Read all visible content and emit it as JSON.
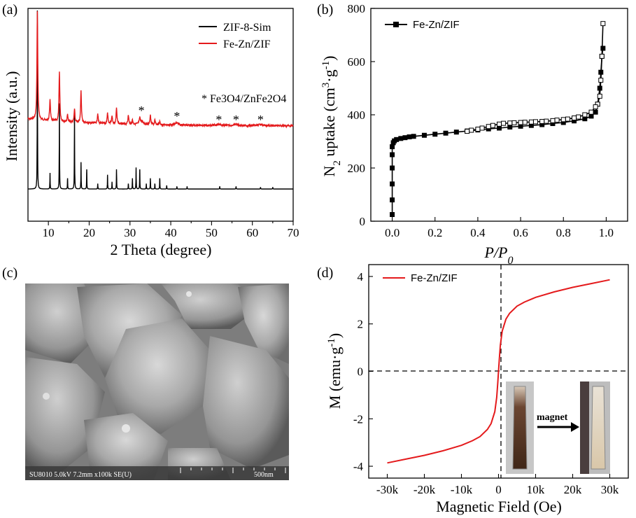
{
  "panels": {
    "a": {
      "label": "(a)",
      "xlabel": "2 Theta (degree)",
      "ylabel": "Intensity (a.u.)",
      "legend": [
        "ZIF-8-Sim",
        "Fe-Zn/ZIF"
      ],
      "annotation": "* Fe3O4/ZnFe2O4",
      "colors": {
        "sim": "#000000",
        "fezn": "#e41a1c"
      }
    },
    "b": {
      "label": "(b)",
      "xlabel": "P/P0",
      "ylabel": "N2 uptake (cm3·g-1)",
      "legend": "Fe-Zn/ZIF"
    },
    "c": {
      "label": "(c)",
      "sem_caption": "SU8010 5.0kV 7.2mm x100k SE(U)",
      "scale_text": "500nm"
    },
    "d": {
      "label": "(d)",
      "xlabel": "Magnetic Field (Oe)",
      "ylabel": "M (emu·g-1)",
      "legend": "Fe-Zn/ZIF",
      "inset_label": "magnet"
    }
  },
  "chart_data": [
    {
      "id": "a",
      "type": "line",
      "title": "",
      "xlabel": "2 Theta (degree)",
      "ylabel": "Intensity (a.u.)",
      "xlim": [
        5,
        70
      ],
      "xticks": [
        10,
        20,
        30,
        40,
        50,
        60,
        70
      ],
      "yticks_shown": false,
      "series": [
        {
          "name": "ZIF-8-Sim",
          "baseline": 0,
          "peaks": [
            [
              7.3,
              100
            ],
            [
              10.4,
              9
            ],
            [
              12.7,
              48
            ],
            [
              14.7,
              6
            ],
            [
              16.4,
              43
            ],
            [
              18.0,
              15
            ],
            [
              19.4,
              11
            ],
            [
              22.1,
              3
            ],
            [
              24.5,
              8
            ],
            [
              25.6,
              4
            ],
            [
              26.7,
              11
            ],
            [
              29.6,
              3
            ],
            [
              30.6,
              6
            ],
            [
              31.5,
              12
            ],
            [
              32.4,
              11
            ],
            [
              34.0,
              3
            ],
            [
              35.0,
              6
            ],
            [
              36.1,
              3
            ],
            [
              37.3,
              6
            ],
            [
              39.0,
              2
            ],
            [
              41.5,
              1.5
            ],
            [
              44.0,
              1.5
            ],
            [
              52.0,
              1.5
            ],
            [
              56.0,
              1.5
            ],
            [
              62.0,
              1
            ],
            [
              65.0,
              1
            ]
          ]
        },
        {
          "name": "Fe-Zn/ZIF",
          "baseline": 37,
          "peaks": [
            [
              7.3,
              100
            ],
            [
              10.4,
              20
            ],
            [
              12.7,
              45
            ],
            [
              14.7,
              7
            ],
            [
              16.4,
              12
            ],
            [
              18.0,
              29
            ],
            [
              22.1,
              9
            ],
            [
              24.5,
              10
            ],
            [
              25.6,
              7
            ],
            [
              26.7,
              15
            ],
            [
              29.6,
              9
            ],
            [
              30.6,
              4
            ],
            [
              32.4,
              5
            ],
            [
              35.0,
              9
            ],
            [
              36.1,
              4
            ],
            [
              37.3,
              3
            ]
          ],
          "marked_positions": [
            32.8,
            41.5,
            51.8,
            56.0,
            62.0
          ]
        }
      ]
    },
    {
      "id": "b",
      "type": "line",
      "xlabel": "P/P0",
      "ylabel": "N2 uptake (cm3·g-1)",
      "xlim": [
        -0.1,
        1.1
      ],
      "ylim": [
        0,
        800
      ],
      "xticks": [
        0.0,
        0.2,
        0.4,
        0.6,
        0.8,
        1.0
      ],
      "yticks": [
        0,
        200,
        400,
        600,
        800
      ],
      "series": [
        {
          "name": "Fe-Zn/ZIF (adsorption)",
          "x": [
            0.0,
            0.0,
            0.0,
            0.0,
            0.0,
            0.0,
            0.005,
            0.01,
            0.02,
            0.04,
            0.06,
            0.08,
            0.1,
            0.15,
            0.2,
            0.25,
            0.3,
            0.35,
            0.4,
            0.45,
            0.5,
            0.55,
            0.6,
            0.65,
            0.7,
            0.75,
            0.8,
            0.85,
            0.9,
            0.93,
            0.95,
            0.96,
            0.97,
            0.975,
            0.98,
            0.985
          ],
          "y": [
            25,
            80,
            140,
            200,
            250,
            280,
            295,
            302,
            307,
            311,
            314,
            317,
            319,
            323,
            327,
            331,
            335,
            339,
            343,
            347,
            350,
            354,
            357,
            360,
            363,
            367,
            371,
            377,
            385,
            395,
            410,
            440,
            500,
            560,
            620,
            650
          ]
        },
        {
          "name": "Fe-Zn/ZIF (desorption)",
          "x": [
            0.985,
            0.98,
            0.975,
            0.97,
            0.96,
            0.95,
            0.93,
            0.9,
            0.87,
            0.85,
            0.82,
            0.8,
            0.77,
            0.75,
            0.72,
            0.7,
            0.67,
            0.65,
            0.62,
            0.6,
            0.57,
            0.55,
            0.52,
            0.5,
            0.47,
            0.45,
            0.42,
            0.4,
            0.37,
            0.35
          ],
          "y": [
            743,
            620,
            530,
            470,
            440,
            430,
            410,
            400,
            392,
            388,
            384,
            382,
            380,
            378,
            376,
            375,
            374,
            373,
            372,
            371,
            370,
            369,
            368,
            365,
            360,
            356,
            350,
            346,
            342,
            338
          ]
        }
      ]
    },
    {
      "id": "d",
      "type": "line",
      "xlabel": "Magnetic Field (Oe)",
      "ylabel": "M (emu·g-1)",
      "xlim": [
        -35000,
        35000
      ],
      "ylim": [
        -4.5,
        4.5
      ],
      "xticks": [
        -30000,
        -20000,
        -10000,
        0,
        10000,
        20000,
        30000
      ],
      "xticklabels": [
        "-30k",
        "-20k",
        "-10k",
        "0",
        "10k",
        "20k",
        "30k"
      ],
      "yticks": [
        -4,
        -2,
        0,
        2,
        4
      ],
      "series": [
        {
          "name": "Fe-Zn/ZIF",
          "x": [
            -30000,
            -25000,
            -20000,
            -15000,
            -10000,
            -7000,
            -5000,
            -3000,
            -2000,
            -1000,
            -500,
            -200,
            0,
            200,
            500,
            1000,
            2000,
            3000,
            5000,
            7000,
            10000,
            15000,
            20000,
            25000,
            30000
          ],
          "y": [
            -3.86,
            -3.7,
            -3.54,
            -3.35,
            -3.12,
            -2.92,
            -2.75,
            -2.45,
            -2.2,
            -1.7,
            -1.1,
            -0.5,
            0,
            0.5,
            1.1,
            1.7,
            2.2,
            2.45,
            2.75,
            2.92,
            3.12,
            3.35,
            3.54,
            3.7,
            3.86
          ]
        }
      ]
    }
  ]
}
